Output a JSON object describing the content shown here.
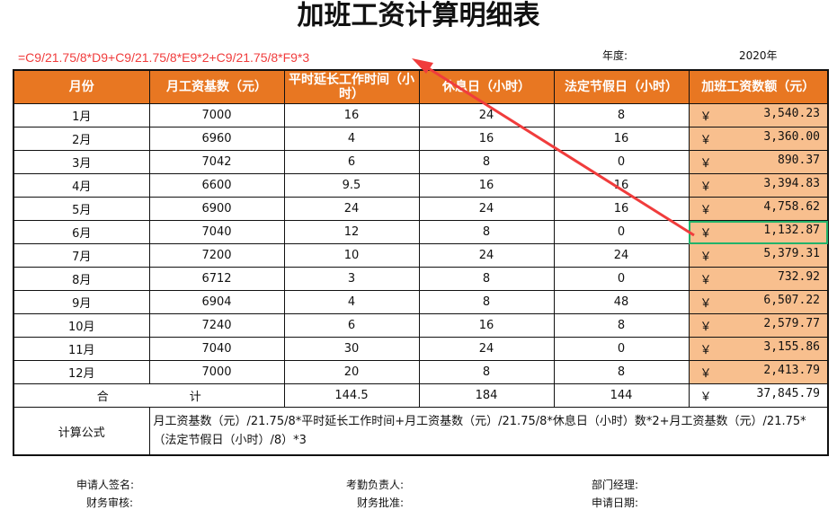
{
  "title": "加班工资计算明细表",
  "year_label": "年度:",
  "year_value": "2020年",
  "headers": [
    "月份",
    "月工资基数（元）",
    "平时延长工作时间（小时）",
    "休息日（小时）",
    "法定节假日（小时）",
    "加班工资数额（元）"
  ],
  "currency": "￥",
  "rows": [
    [
      "1月",
      "7000",
      "16",
      "24",
      "8",
      "3,540.23"
    ],
    [
      "2月",
      "6960",
      "4",
      "16",
      "16",
      "3,360.00"
    ],
    [
      "3月",
      "7042",
      "6",
      "8",
      "0",
      "890.37"
    ],
    [
      "4月",
      "6600",
      "9.5",
      "16",
      "16",
      "3,394.83"
    ],
    [
      "5月",
      "6900",
      "24",
      "24",
      "16",
      "4,758.62"
    ],
    [
      "6月",
      "7040",
      "12",
      "8",
      "0",
      "1,132.87"
    ],
    [
      "7月",
      "7200",
      "10",
      "24",
      "24",
      "5,379.31"
    ],
    [
      "8月",
      "6712",
      "3",
      "8",
      "0",
      "732.92"
    ],
    [
      "9月",
      "6904",
      "4",
      "8",
      "48",
      "6,507.22"
    ],
    [
      "10月",
      "7240",
      "6",
      "16",
      "8",
      "2,579.77"
    ],
    [
      "11月",
      "7040",
      "30",
      "24",
      "0",
      "3,155.86"
    ],
    [
      "12月",
      "7000",
      "20",
      "8",
      "8",
      "2,413.79"
    ]
  ],
  "total": {
    "label_a": "合",
    "label_b": "计",
    "overtime": "144.5",
    "rest": "184",
    "holiday": "144",
    "amount": "37,845.79"
  },
  "formula_label": "计算公式",
  "formula_text": "月工资基数（元）/21.75/8*平时延长工作时间+月工资基数（元）/21.75/8*休息日（小时）数*2+月工资基数（元）/21.75*（法定节假日（小时）/8）*3",
  "annotation": "=C9/21.75/8*D9+C9/21.75/8*E9*2+C9/21.75/8*F9*3",
  "signatures": [
    "申请人签名:",
    "考勤负责人:",
    "部门经理:",
    "财务审核:",
    "财务批准:",
    "申请日期:"
  ],
  "colors": {
    "header": "#e87722",
    "amount_fill": "#f8bf8e",
    "selection": "#21b36b",
    "annotation": "#f03c3c"
  }
}
